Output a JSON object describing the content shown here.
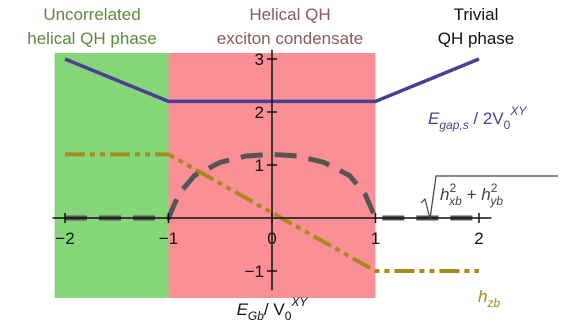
{
  "chart_data": {
    "type": "line",
    "phases": [
      {
        "label_line1": "Uncorrelated",
        "label_line2": "helical QH phase",
        "x_range": [
          -2.1,
          -1.0
        ],
        "color": "#85d679",
        "label_color": "#5a8c3c"
      },
      {
        "label_line1": "Helical QH",
        "label_line2": "exciton condensate",
        "x_range": [
          -1.0,
          1.0
        ],
        "color": "#fa9096",
        "label_color": "#8a5a5a"
      },
      {
        "label_line1": "Trivial",
        "label_line2": "QH phase",
        "x_range": [
          1.0,
          2.1
        ],
        "color": "#ffffff",
        "label_color": "#111111"
      }
    ],
    "x_axis": {
      "label_main": "E",
      "label_sub": "Gb",
      "label_mid": "/ V",
      "label_sub2": "0",
      "label_sup": "XY",
      "ticks": [
        "−2",
        "−1",
        "0",
        "1",
        "2"
      ],
      "tick_values": [
        -2,
        -1,
        0,
        1,
        2
      ],
      "range": [
        -2.2,
        2.2
      ]
    },
    "y_axis": {
      "ticks": [
        "−1",
        "1",
        "2",
        "3"
      ],
      "tick_values": [
        -1,
        1,
        2,
        3
      ],
      "range": [
        -1.25,
        3.25
      ]
    },
    "series": [
      {
        "name_main": "E",
        "name_sub": "gap,s",
        "name_rest": " / 2V",
        "name_sub2": "0",
        "name_sup": "XY",
        "color": "#4a3f95",
        "style": "solid",
        "x": [
          -2.0,
          -1.0,
          1.0,
          2.0
        ],
        "y": [
          3.0,
          2.2,
          2.2,
          3.0
        ]
      },
      {
        "name_main": "h",
        "name_sub": "zb",
        "color": "#a68a1c",
        "style": "dash-dot-dot",
        "x": [
          -2.0,
          -1.0,
          1.0,
          2.0
        ],
        "y": [
          1.2,
          1.2,
          -1.0,
          -1.0
        ]
      },
      {
        "name_main": "√(h²xb + h²yb)",
        "color": "#555555",
        "style": "dashed",
        "x": [
          -2.0,
          -1.05,
          -1.0,
          -0.9,
          -0.75,
          -0.5,
          -0.25,
          0.0,
          0.25,
          0.5,
          0.75,
          0.9,
          1.0,
          1.05,
          2.0
        ],
        "y": [
          0.0,
          0.0,
          0.0,
          0.45,
          0.8,
          1.05,
          1.17,
          1.2,
          1.17,
          1.05,
          0.8,
          0.45,
          0.0,
          0.0,
          0.0
        ]
      }
    ],
    "grid": false,
    "legend_placement": "inline-right"
  }
}
